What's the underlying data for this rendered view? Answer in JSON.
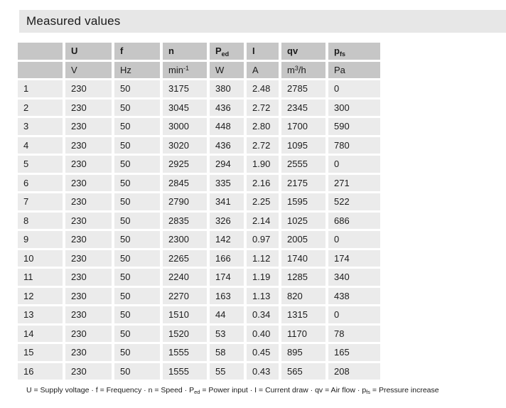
{
  "title": "Measured values",
  "colors": {
    "title_band_bg": "#e7e7e7",
    "header_cell_bg": "#c6c6c6",
    "data_cell_bg": "#ebebeb",
    "text": "#1c1c1c"
  },
  "table": {
    "header": {
      "c0": "",
      "c1": "U",
      "c2": "f",
      "c3": "n",
      "c4_base": "P",
      "c4_sub": "ed",
      "c5": "I",
      "c6": "qv",
      "c7_base": "p",
      "c7_sub": "fs"
    },
    "units": {
      "c0": "",
      "c1": "V",
      "c2": "Hz",
      "c3_base": "min",
      "c3_sup": "-1",
      "c4": "W",
      "c5": "A",
      "c6_base": "m",
      "c6_sup": "3",
      "c6_after": "/h",
      "c7": "Pa"
    },
    "rows": [
      [
        "1",
        "230",
        "50",
        "3175",
        "380",
        "2.48",
        "2785",
        "0"
      ],
      [
        "2",
        "230",
        "50",
        "3045",
        "436",
        "2.72",
        "2345",
        "300"
      ],
      [
        "3",
        "230",
        "50",
        "3000",
        "448",
        "2.80",
        "1700",
        "590"
      ],
      [
        "4",
        "230",
        "50",
        "3020",
        "436",
        "2.72",
        "1095",
        "780"
      ],
      [
        "5",
        "230",
        "50",
        "2925",
        "294",
        "1.90",
        "2555",
        "0"
      ],
      [
        "6",
        "230",
        "50",
        "2845",
        "335",
        "2.16",
        "2175",
        "271"
      ],
      [
        "7",
        "230",
        "50",
        "2790",
        "341",
        "2.25",
        "1595",
        "522"
      ],
      [
        "8",
        "230",
        "50",
        "2835",
        "326",
        "2.14",
        "1025",
        "686"
      ],
      [
        "9",
        "230",
        "50",
        "2300",
        "142",
        "0.97",
        "2005",
        "0"
      ],
      [
        "10",
        "230",
        "50",
        "2265",
        "166",
        "1.12",
        "1740",
        "174"
      ],
      [
        "11",
        "230",
        "50",
        "2240",
        "174",
        "1.19",
        "1285",
        "340"
      ],
      [
        "12",
        "230",
        "50",
        "2270",
        "163",
        "1.13",
        "820",
        "438"
      ],
      [
        "13",
        "230",
        "50",
        "1510",
        "44",
        "0.34",
        "1315",
        "0"
      ],
      [
        "14",
        "230",
        "50",
        "1520",
        "53",
        "0.40",
        "1170",
        "78"
      ],
      [
        "15",
        "230",
        "50",
        "1555",
        "58",
        "0.45",
        "895",
        "165"
      ],
      [
        "16",
        "230",
        "50",
        "1555",
        "55",
        "0.43",
        "565",
        "208"
      ]
    ]
  },
  "legend": {
    "seg1": "U = Supply voltage · f = Frequency · n = Speed · P",
    "sub1": "ed",
    "seg2": " = Power input · I = Current draw · qv = Air flow · p",
    "sub2": "fs",
    "seg3": " = Pressure increase"
  }
}
